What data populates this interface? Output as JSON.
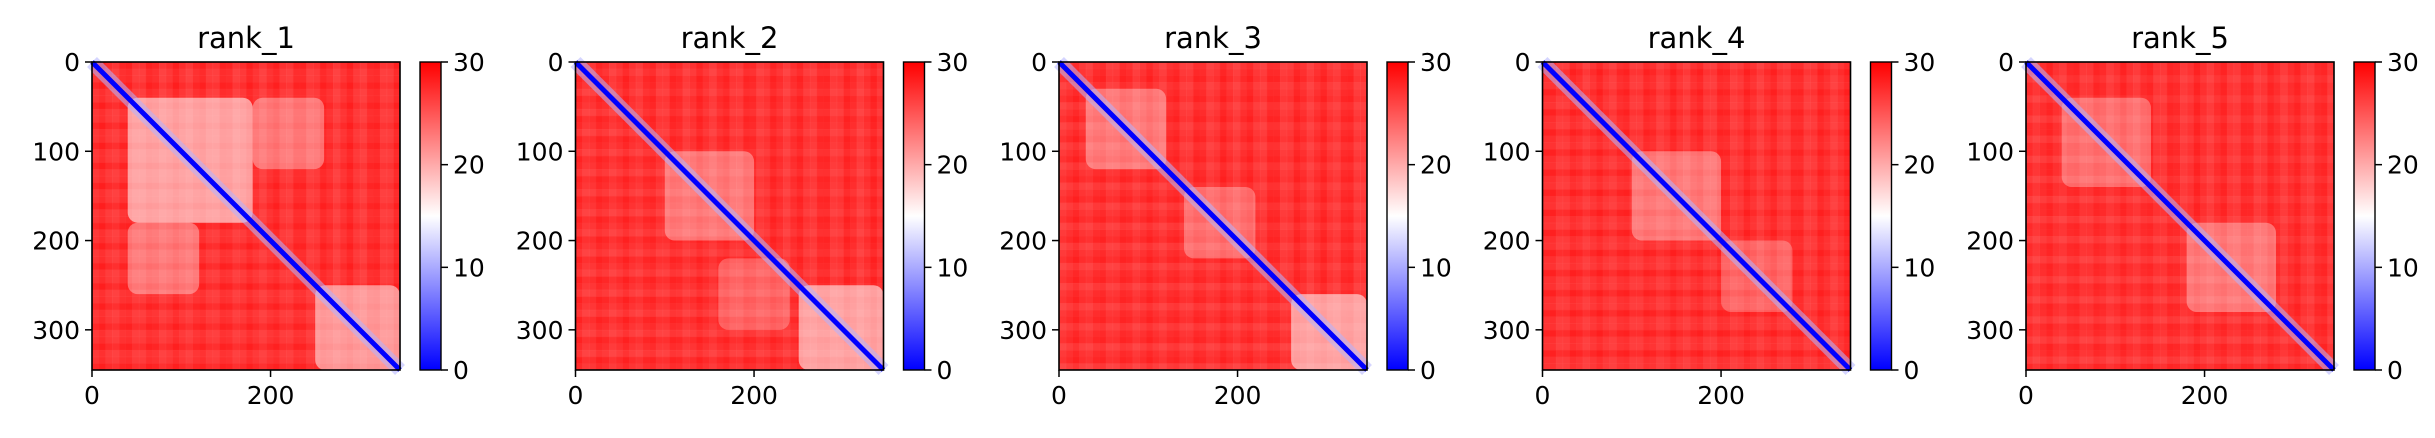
{
  "chart_data": [
    {
      "type": "heatmap",
      "title": "rank_1",
      "xlim": [
        0,
        345
      ],
      "ylim": [
        345,
        0
      ],
      "xticks": [
        0,
        200
      ],
      "yticks": [
        0,
        100,
        200,
        300
      ],
      "clim": [
        0,
        30
      ],
      "colorbar_ticks": [
        0,
        10,
        20,
        30
      ],
      "colormap": [
        "#0000ff",
        "#ffffff",
        "#ff0000"
      ],
      "low_error_regions": [
        {
          "x": [
            40,
            180
          ],
          "y": [
            40,
            180
          ],
          "level": 0.55
        },
        {
          "x": [
            180,
            260
          ],
          "y": [
            40,
            120
          ],
          "level": 0.35
        },
        {
          "x": [
            40,
            120
          ],
          "y": [
            180,
            260
          ],
          "level": 0.35
        },
        {
          "x": [
            250,
            345
          ],
          "y": [
            250,
            345
          ],
          "level": 0.5
        }
      ]
    },
    {
      "type": "heatmap",
      "title": "rank_2",
      "xlim": [
        0,
        345
      ],
      "ylim": [
        345,
        0
      ],
      "xticks": [
        0,
        200
      ],
      "yticks": [
        0,
        100,
        200,
        300
      ],
      "clim": [
        0,
        30
      ],
      "colorbar_ticks": [
        0,
        10,
        20,
        30
      ],
      "colormap": [
        "#0000ff",
        "#ffffff",
        "#ff0000"
      ],
      "low_error_regions": [
        {
          "x": [
            100,
            200
          ],
          "y": [
            100,
            200
          ],
          "level": 0.35
        },
        {
          "x": [
            250,
            345
          ],
          "y": [
            250,
            345
          ],
          "level": 0.55
        },
        {
          "x": [
            160,
            240
          ],
          "y": [
            220,
            300
          ],
          "level": 0.25
        }
      ]
    },
    {
      "type": "heatmap",
      "title": "rank_3",
      "xlim": [
        0,
        345
      ],
      "ylim": [
        345,
        0
      ],
      "xticks": [
        0,
        200
      ],
      "yticks": [
        0,
        100,
        200,
        300
      ],
      "clim": [
        0,
        30
      ],
      "colorbar_ticks": [
        0,
        10,
        20,
        30
      ],
      "colormap": [
        "#0000ff",
        "#ffffff",
        "#ff0000"
      ],
      "low_error_regions": [
        {
          "x": [
            30,
            120
          ],
          "y": [
            30,
            120
          ],
          "level": 0.35
        },
        {
          "x": [
            140,
            220
          ],
          "y": [
            140,
            220
          ],
          "level": 0.3
        },
        {
          "x": [
            260,
            345
          ],
          "y": [
            260,
            345
          ],
          "level": 0.55
        }
      ]
    },
    {
      "type": "heatmap",
      "title": "rank_4",
      "xlim": [
        0,
        345
      ],
      "ylim": [
        345,
        0
      ],
      "xticks": [
        0,
        200
      ],
      "yticks": [
        0,
        100,
        200,
        300
      ],
      "clim": [
        0,
        30
      ],
      "colorbar_ticks": [
        0,
        10,
        20,
        30
      ],
      "colormap": [
        "#0000ff",
        "#ffffff",
        "#ff0000"
      ],
      "low_error_regions": [
        {
          "x": [
            100,
            200
          ],
          "y": [
            100,
            200
          ],
          "level": 0.35
        },
        {
          "x": [
            200,
            280
          ],
          "y": [
            200,
            280
          ],
          "level": 0.25
        }
      ]
    },
    {
      "type": "heatmap",
      "title": "rank_5",
      "xlim": [
        0,
        345
      ],
      "ylim": [
        345,
        0
      ],
      "xticks": [
        0,
        200
      ],
      "yticks": [
        0,
        100,
        200,
        300
      ],
      "clim": [
        0,
        30
      ],
      "colorbar_ticks": [
        0,
        10,
        20,
        30
      ],
      "colormap": [
        "#0000ff",
        "#ffffff",
        "#ff0000"
      ],
      "low_error_regions": [
        {
          "x": [
            40,
            140
          ],
          "y": [
            40,
            140
          ],
          "level": 0.3
        },
        {
          "x": [
            180,
            280
          ],
          "y": [
            180,
            280
          ],
          "level": 0.35
        }
      ]
    }
  ]
}
